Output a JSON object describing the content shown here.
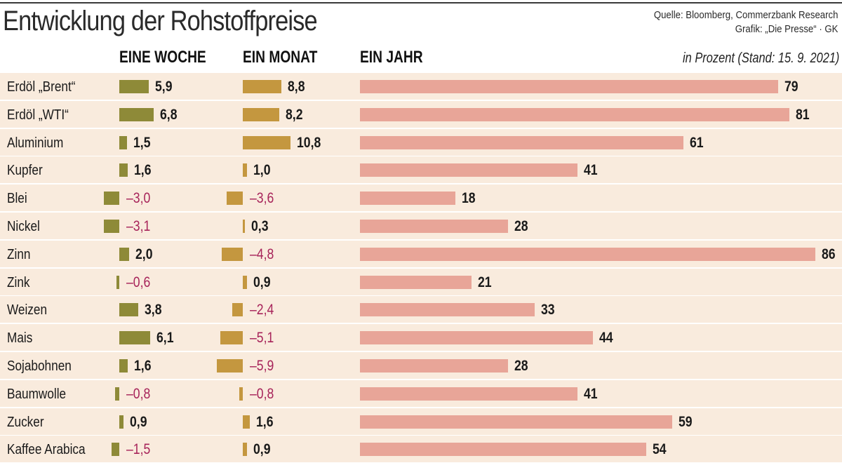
{
  "header": {
    "title": "Entwicklung der Rohstoffpreise",
    "source_line1": "Quelle: Bloomberg, Commerzbank Research",
    "source_line2": "Grafik: „Die Presse“ · GK",
    "unit_note": "in Prozent (Stand: 15. 9. 2021)"
  },
  "colors": {
    "week_bar": "#8e8a38",
    "month_bar": "#c4973f",
    "year_bar": "#e8a598",
    "negative_text": "#a7245a",
    "row_background": "#f9ebdd"
  },
  "chart_data": {
    "type": "bar",
    "title": "Entwicklung der Rohstoffpreise",
    "unit": "in Prozent (Stand: 15. 9. 2021)",
    "categories": [
      "Erdöl „Brent“",
      "Erdöl „WTI“",
      "Aluminium",
      "Kupfer",
      "Blei",
      "Nickel",
      "Zinn",
      "Zink",
      "Weizen",
      "Mais",
      "Sojabohnen",
      "Baumwolle",
      "Zucker",
      "Kaffee Arabica"
    ],
    "series": [
      {
        "key": "week",
        "name": "EINE WOCHE",
        "values": [
          5.9,
          6.8,
          1.5,
          1.6,
          -3.0,
          -3.1,
          2.0,
          -0.6,
          3.8,
          6.1,
          1.6,
          -0.8,
          0.9,
          -1.5
        ],
        "labels": [
          "5,9",
          "6,8",
          "1,5",
          "1,6",
          "–3,0",
          "–3,1",
          "2,0",
          "–0,6",
          "3,8",
          "6,1",
          "1,6",
          "–0,8",
          "0,9",
          "–1,5"
        ]
      },
      {
        "key": "month",
        "name": "EIN MONAT",
        "values": [
          8.8,
          8.2,
          10.8,
          1.0,
          -3.6,
          0.3,
          -4.8,
          0.9,
          -2.4,
          -5.1,
          -5.9,
          -0.8,
          1.6,
          0.9
        ],
        "labels": [
          "8,8",
          "8,2",
          "10,8",
          "1,0",
          "–3,6",
          "0,3",
          "–4,8",
          "0,9",
          "–2,4",
          "–5,1",
          "–5,9",
          "–0,8",
          "1,6",
          "0,9"
        ]
      },
      {
        "key": "year",
        "name": "EIN JAHR",
        "values": [
          79,
          81,
          61,
          41,
          18,
          28,
          86,
          21,
          33,
          44,
          28,
          41,
          59,
          54
        ],
        "labels": [
          "79",
          "81",
          "61",
          "41",
          "18",
          "28",
          "86",
          "21",
          "33",
          "44",
          "28",
          "41",
          "59",
          "54"
        ]
      }
    ]
  }
}
